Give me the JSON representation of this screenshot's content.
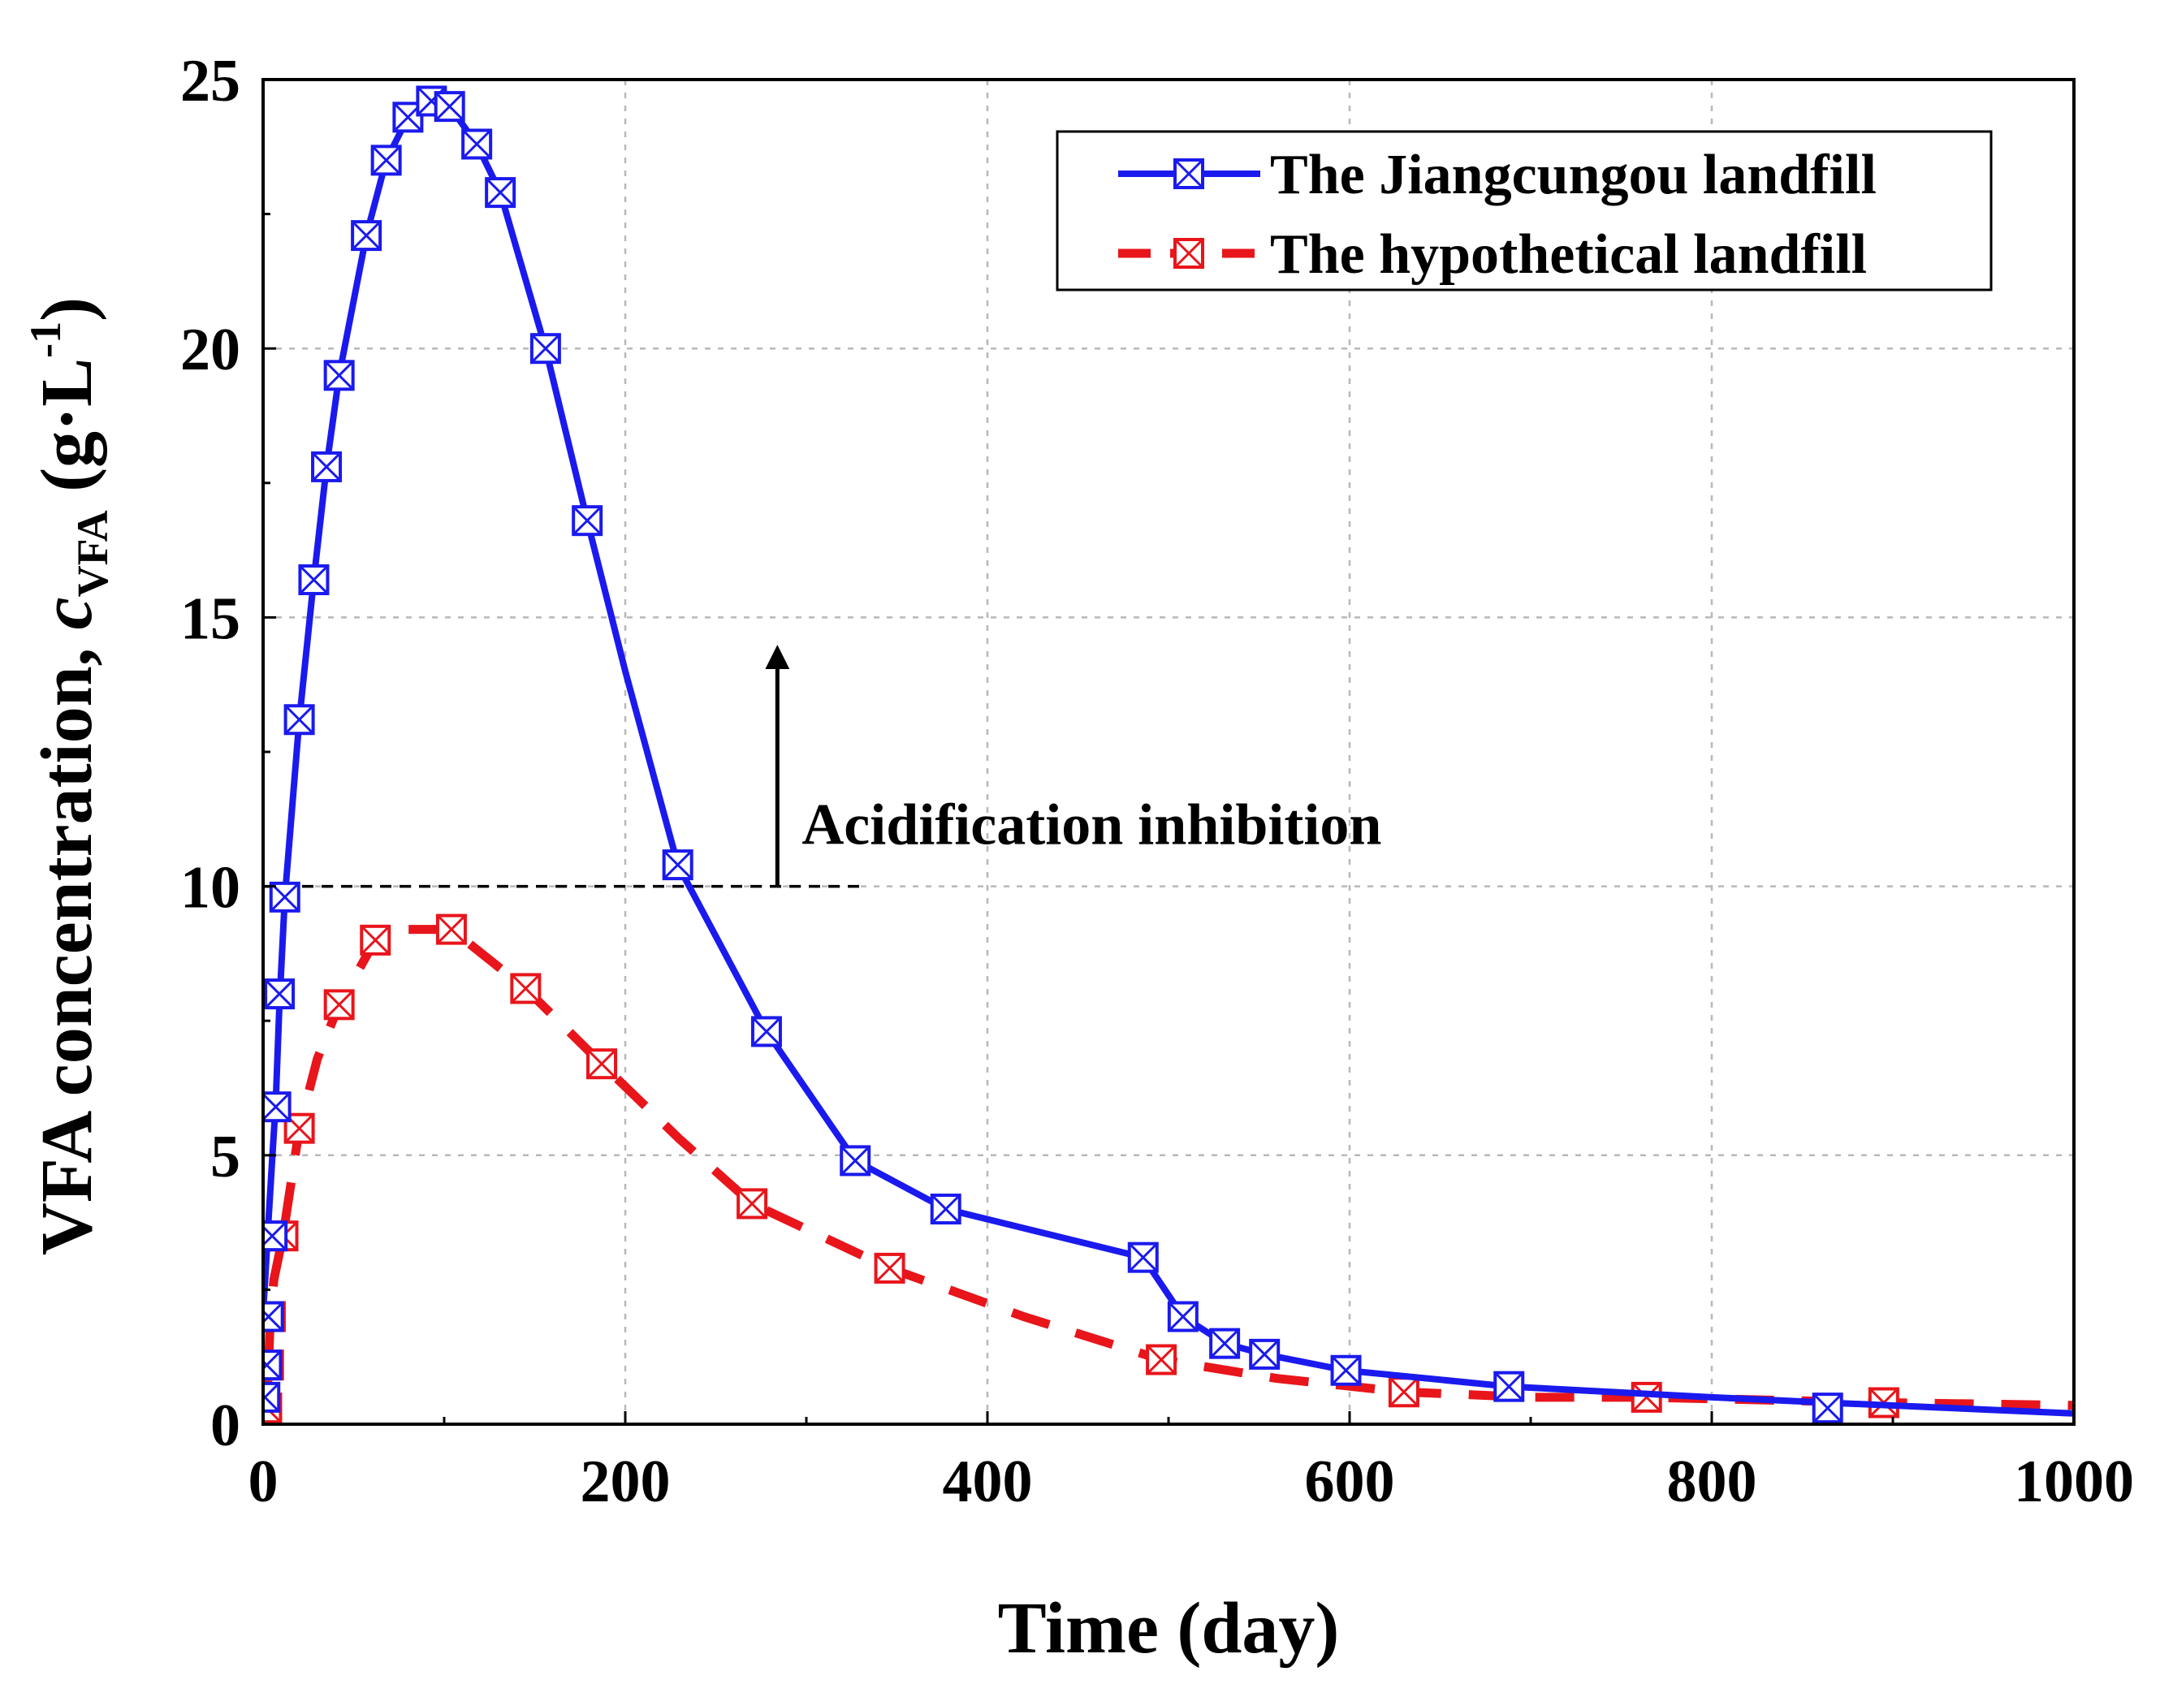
{
  "chart_data": {
    "type": "line",
    "xlabel": "Time (day)",
    "ylabel": {
      "main": "VFA concentration, ",
      "var": "c",
      "sub": "VFA",
      "unit_open": " (g·L",
      "unit_sup": "-1",
      "unit_close": ")"
    },
    "xlim": [
      0,
      1000
    ],
    "ylim": [
      0,
      25
    ],
    "xticks": [
      0,
      200,
      400,
      600,
      800,
      1000
    ],
    "yticks": [
      0,
      5,
      10,
      15,
      20,
      25
    ],
    "grid": true,
    "legend_position": "top-right",
    "series": [
      {
        "name": "The Jiangcungou landfill",
        "color": "#1a1aee",
        "line_style": "solid",
        "marker": "square-x",
        "x": [
          1,
          2,
          3,
          5,
          7,
          9,
          12,
          20,
          28,
          35,
          42,
          57,
          68,
          80,
          93,
          103,
          118,
          131,
          156,
          179,
          229,
          278,
          327,
          377,
          486,
          508,
          531,
          553,
          598,
          688,
          864
        ],
        "y": [
          0.5,
          1.1,
          2.0,
          3.5,
          5.9,
          8.0,
          9.8,
          13.1,
          15.7,
          17.8,
          19.5,
          22.1,
          23.5,
          24.3,
          24.6,
          24.5,
          23.8,
          22.9,
          20.0,
          16.8,
          10.4,
          7.3,
          4.9,
          4.0,
          3.1,
          2.0,
          1.5,
          1.3,
          1.0,
          0.7,
          0.3
        ],
        "curve_x": [
          0,
          1,
          2,
          3,
          5,
          7,
          9,
          12,
          20,
          28,
          35,
          42,
          57,
          68,
          80,
          93,
          103,
          118,
          131,
          156,
          179,
          200,
          229,
          278,
          327,
          377,
          486,
          508,
          531,
          553,
          598,
          688,
          800,
          864,
          1000
        ],
        "curve_y": [
          2.1,
          2.6,
          3.2,
          3.8,
          4.9,
          6.0,
          7.8,
          9.8,
          13.1,
          15.7,
          17.8,
          19.5,
          22.1,
          23.5,
          24.3,
          24.6,
          24.5,
          23.8,
          22.9,
          20.0,
          16.8,
          14.0,
          10.4,
          7.3,
          4.9,
          4.0,
          3.1,
          2.0,
          1.5,
          1.3,
          1.0,
          0.7,
          0.5,
          0.4,
          0.2
        ]
      },
      {
        "name": "The hypothetical landfill",
        "color": "#e8151b",
        "line_style": "dashed",
        "marker": "square-x",
        "x": [
          2,
          3,
          4,
          6,
          11,
          20,
          42,
          62,
          104,
          145,
          187,
          270,
          346,
          496,
          630,
          764,
          895
        ],
        "y": [
          0.3,
          1.1,
          2.0,
          3.5,
          3.5,
          5.5,
          7.8,
          9.0,
          9.2,
          8.1,
          6.7,
          4.1,
          2.9,
          1.2,
          0.6,
          0.5,
          0.4
        ],
        "curve_x": [
          0,
          2,
          3,
          4,
          6,
          11,
          20,
          30,
          42,
          62,
          80,
          104,
          145,
          187,
          230,
          270,
          346,
          420,
          496,
          560,
          630,
          700,
          764,
          895,
          1000
        ],
        "curve_y": [
          0.1,
          0.3,
          1.1,
          2.0,
          2.7,
          3.5,
          5.5,
          6.8,
          7.8,
          9.0,
          9.2,
          9.2,
          8.1,
          6.7,
          5.3,
          4.1,
          2.9,
          2.0,
          1.2,
          0.85,
          0.6,
          0.5,
          0.5,
          0.4,
          0.35
        ]
      }
    ],
    "annotations": [
      {
        "text": "Acidification inhibition",
        "threshold_y": 10,
        "threshold_x_range": [
          0,
          330
        ],
        "arrow_x": 284,
        "arrow_y_range": [
          10,
          14.4
        ]
      }
    ]
  }
}
